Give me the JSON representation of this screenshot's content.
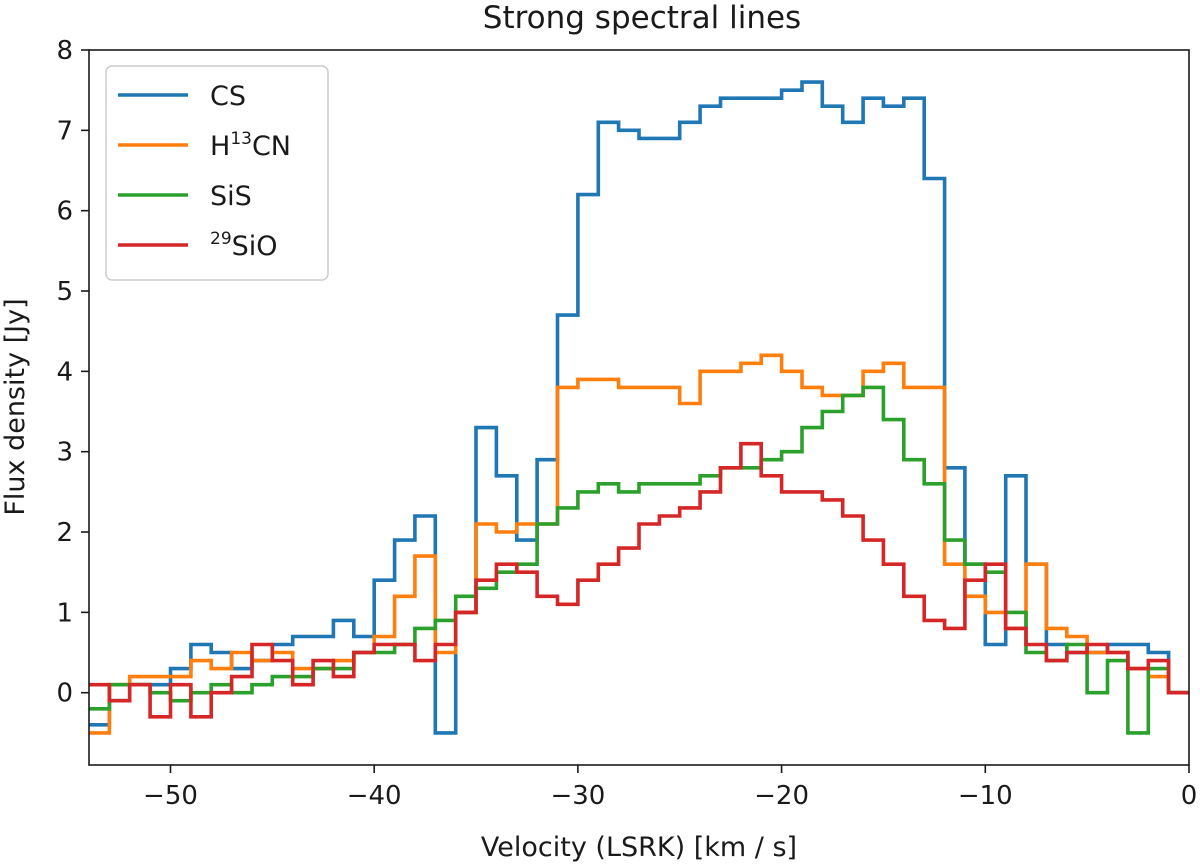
{
  "chart_data": {
    "type": "line",
    "step": "mid",
    "title": "Strong spectral lines",
    "xlabel": "Velocity (LSRK) [km / s]",
    "ylabel": "Flux density [Jy]",
    "xlim": [
      -54,
      0
    ],
    "ylim": [
      -0.9,
      8
    ],
    "bin_width": 1,
    "x": [
      -53.5,
      -52.5,
      -51.5,
      -50.5,
      -49.5,
      -48.5,
      -47.5,
      -46.5,
      -45.5,
      -44.5,
      -43.5,
      -42.5,
      -41.5,
      -40.5,
      -39.5,
      -38.5,
      -37.5,
      -36.5,
      -35.5,
      -34.5,
      -33.5,
      -32.5,
      -31.5,
      -30.5,
      -29.5,
      -28.5,
      -27.5,
      -26.5,
      -25.5,
      -24.5,
      -23.5,
      -22.5,
      -21.5,
      -20.5,
      -19.5,
      -18.5,
      -17.5,
      -16.5,
      -15.5,
      -14.5,
      -13.5,
      -12.5,
      -11.5,
      -10.5,
      -9.5,
      -8.5,
      -7.5,
      -6.5,
      -5.5,
      -4.5,
      -3.5,
      -2.5,
      -1.5,
      -0.5
    ],
    "xticks": [
      -50,
      -40,
      -30,
      -20,
      -10,
      0
    ],
    "xtick_labels": [
      "−50",
      "−40",
      "−30",
      "−20",
      "−10",
      "0"
    ],
    "yticks": [
      0,
      1,
      2,
      3,
      4,
      5,
      6,
      7,
      8
    ],
    "ytick_labels": [
      "0",
      "1",
      "2",
      "3",
      "4",
      "5",
      "6",
      "7",
      "8"
    ],
    "legend_position": "top-left",
    "series": [
      {
        "key": "cs",
        "name": "CS",
        "label_main": "CS",
        "label_sup": "",
        "label_suffix": "",
        "color": "#1f77b4",
        "values": [
          -0.4,
          -0.1,
          0.1,
          0.1,
          0.3,
          0.6,
          0.5,
          0.3,
          0.4,
          0.6,
          0.7,
          0.7,
          0.9,
          0.7,
          1.4,
          1.9,
          2.2,
          -0.5,
          1.0,
          3.3,
          2.7,
          1.9,
          2.9,
          4.7,
          6.2,
          7.1,
          7.0,
          6.9,
          6.9,
          7.1,
          7.3,
          7.4,
          7.4,
          7.4,
          7.5,
          7.6,
          7.3,
          7.1,
          7.4,
          7.3,
          7.4,
          6.4,
          2.8,
          1.6,
          0.6,
          2.7,
          1.6,
          0.6,
          0.5,
          0.5,
          0.6,
          0.6,
          0.5,
          0.0
        ]
      },
      {
        "key": "h13cn",
        "name": "H13CN",
        "label_main": "H",
        "label_sup": "13",
        "label_suffix": "CN",
        "color": "#ff7f0e",
        "values": [
          -0.5,
          0.1,
          0.2,
          0.2,
          0.2,
          0.4,
          0.3,
          0.5,
          0.4,
          0.5,
          0.3,
          0.3,
          0.4,
          0.5,
          0.7,
          1.2,
          1.7,
          0.5,
          1.0,
          2.1,
          2.0,
          2.1,
          2.1,
          3.8,
          3.9,
          3.9,
          3.8,
          3.8,
          3.8,
          3.6,
          4.0,
          4.0,
          4.1,
          4.2,
          4.0,
          3.8,
          3.7,
          3.7,
          4.0,
          4.1,
          3.8,
          3.8,
          1.6,
          1.2,
          1.0,
          0.8,
          1.6,
          0.8,
          0.7,
          0.5,
          0.5,
          0.3,
          0.2,
          0.0
        ]
      },
      {
        "key": "sis",
        "name": "SiS",
        "label_main": "SiS",
        "label_sup": "",
        "label_suffix": "",
        "color": "#2ca02c",
        "values": [
          -0.2,
          0.1,
          0.1,
          0.0,
          -0.1,
          0.0,
          0.1,
          0.0,
          0.1,
          0.2,
          0.2,
          0.3,
          0.3,
          0.5,
          0.5,
          0.6,
          0.8,
          0.9,
          1.2,
          1.3,
          1.5,
          1.6,
          2.1,
          2.3,
          2.5,
          2.6,
          2.5,
          2.6,
          2.6,
          2.6,
          2.7,
          2.8,
          2.8,
          2.9,
          3.0,
          3.3,
          3.5,
          3.7,
          3.8,
          3.4,
          2.9,
          2.6,
          1.9,
          1.6,
          1.5,
          1.0,
          0.5,
          0.4,
          0.6,
          0.0,
          0.4,
          -0.5,
          0.3,
          0.0
        ]
      },
      {
        "key": "sio29",
        "name": "29SiO",
        "label_main": "SiO",
        "label_sup": "29",
        "label_suffix": "",
        "color": "#d62728",
        "values": [
          0.1,
          -0.1,
          0.1,
          -0.3,
          0.1,
          -0.3,
          0.0,
          0.2,
          0.6,
          0.4,
          0.1,
          0.4,
          0.2,
          0.5,
          0.6,
          0.6,
          0.4,
          0.6,
          1.0,
          1.4,
          1.6,
          1.5,
          1.2,
          1.1,
          1.4,
          1.6,
          1.8,
          2.1,
          2.2,
          2.3,
          2.5,
          2.8,
          3.1,
          2.7,
          2.5,
          2.5,
          2.4,
          2.2,
          1.9,
          1.6,
          1.2,
          0.9,
          0.8,
          1.4,
          1.6,
          0.8,
          0.6,
          0.4,
          0.5,
          0.6,
          0.5,
          0.3,
          0.4,
          0.0
        ]
      }
    ]
  }
}
